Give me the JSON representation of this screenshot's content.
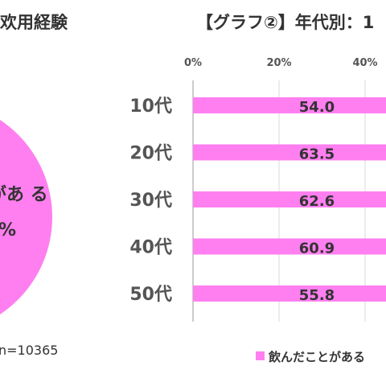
{
  "left_panel": {
    "title_fragment": "欢用経験",
    "pie_label_line1": "があ る",
    "pie_label_line2": "%",
    "sample_size": "n=10365",
    "pie_color": "#ff7ff0"
  },
  "right_panel": {
    "title_fragment": "【グラフ②】年代別：1"
  },
  "chart_data": {
    "type": "bar",
    "orientation": "horizontal",
    "categories": [
      "10代",
      "20代",
      "30代",
      "40代",
      "50代"
    ],
    "series": [
      {
        "name": "飲んだことがある",
        "values": [
          54.0,
          63.5,
          62.6,
          60.9,
          55.8
        ],
        "color": "#ff7ff0"
      }
    ],
    "value_labels": [
      "54.0",
      "63.5",
      "62.6",
      "60.9",
      "55.8"
    ],
    "tick_labels": [
      "0%",
      "20%",
      "40%"
    ],
    "xlim": [
      0,
      100
    ],
    "grid": true,
    "legend": "bottom",
    "legend_label": "飲んだことがある"
  }
}
